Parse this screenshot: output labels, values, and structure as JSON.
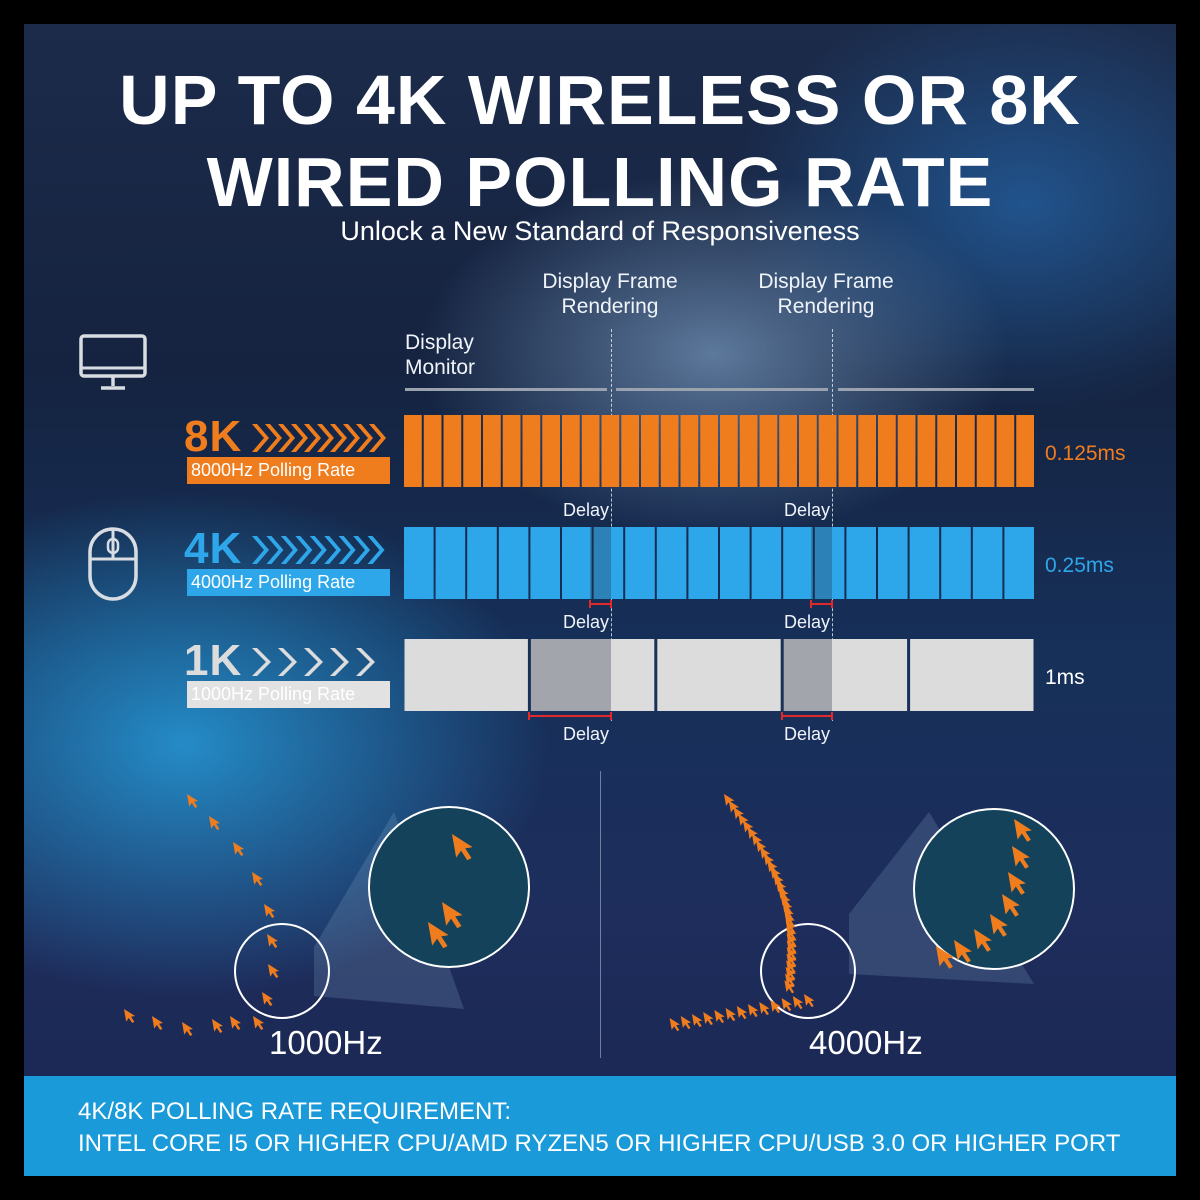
{
  "title_line1": "UP TO 4K WIRELESS OR 8K",
  "title_line2": "WIRED POLLING RATE",
  "subtitle": "Unlock a New Standard of Responsiveness",
  "header_display_frame": "Display Frame\nRendering",
  "header_display_monitor": "Display\nMonitor",
  "rows": [
    {
      "big": "8K",
      "tag": "8000Hz Polling Rate",
      "interval": "0.125ms",
      "color": "#f07d1d",
      "segments": 32
    },
    {
      "big": "4K",
      "tag": "4000Hz Polling Rate",
      "interval": "0.25ms",
      "color": "#2ea7ea",
      "segments": 20
    },
    {
      "big": "1K",
      "tag": "1000Hz Polling Rate",
      "interval": "1ms",
      "color": "#dcdcdc",
      "segments": 5
    }
  ],
  "delay_label": "Delay",
  "comparison": {
    "left_label": "1000Hz",
    "right_label": "4000Hz"
  },
  "footer": {
    "requirement": "4K/8K POLLING RATE REQUIREMENT:",
    "spec": "INTEL CORE I5 OR HIGHER CPU/AMD RYZEN5 OR HIGHER CPU/USB 3.0 OR HIGHER PORT"
  },
  "icons": [
    "monitor-icon",
    "mouse-icon",
    "chevron-arrows-icon",
    "cursor-arrow-icon",
    "magnifier-circle-icon"
  ]
}
